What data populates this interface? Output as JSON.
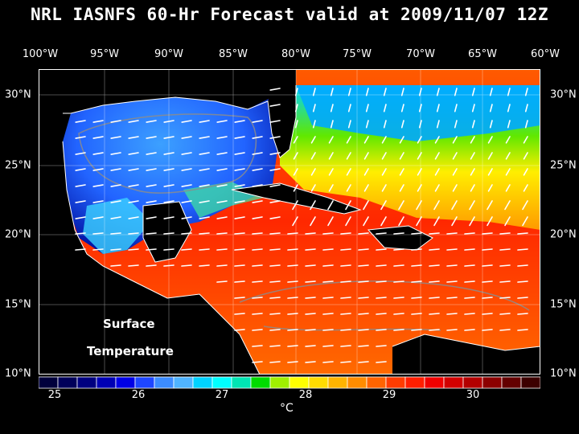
{
  "title": "NRL IASNFS  60-Hr Forecast valid at 2009/11/07 12Z",
  "longitude_labels": [
    "100°W",
    "95°W",
    "90°W",
    "85°W",
    "80°W",
    "75°W",
    "70°W",
    "65°W",
    "60°W"
  ],
  "latitude_labels": [
    "30°N",
    "25°N",
    "20°N",
    "15°N",
    "10°N"
  ],
  "field_labels": {
    "line1": "Surface",
    "line2": "Temperature"
  },
  "colorbar": {
    "ticks": [
      "25",
      "26",
      "27",
      "28",
      "29",
      "30"
    ],
    "unit": "°C",
    "colors": [
      "#00003c",
      "#00005a",
      "#000080",
      "#0000b4",
      "#0000e6",
      "#1e46ff",
      "#3c8cff",
      "#50b4ff",
      "#00d2ff",
      "#00ffff",
      "#00e6b4",
      "#00dc00",
      "#a0f000",
      "#ffff00",
      "#ffdc00",
      "#ffb400",
      "#ff8c00",
      "#ff6400",
      "#ff3c00",
      "#ff1e00",
      "#f00000",
      "#d20000",
      "#b40000",
      "#8c0000",
      "#640000",
      "#3c0000"
    ]
  },
  "map_colors": {
    "ocean_cold": "#1e46ff",
    "ocean_warm": "#ff3c00",
    "land": "#000000",
    "coast": "#ffffff",
    "bathymetry": "#8c8c8c",
    "wind_vectors": "#ffffff"
  }
}
